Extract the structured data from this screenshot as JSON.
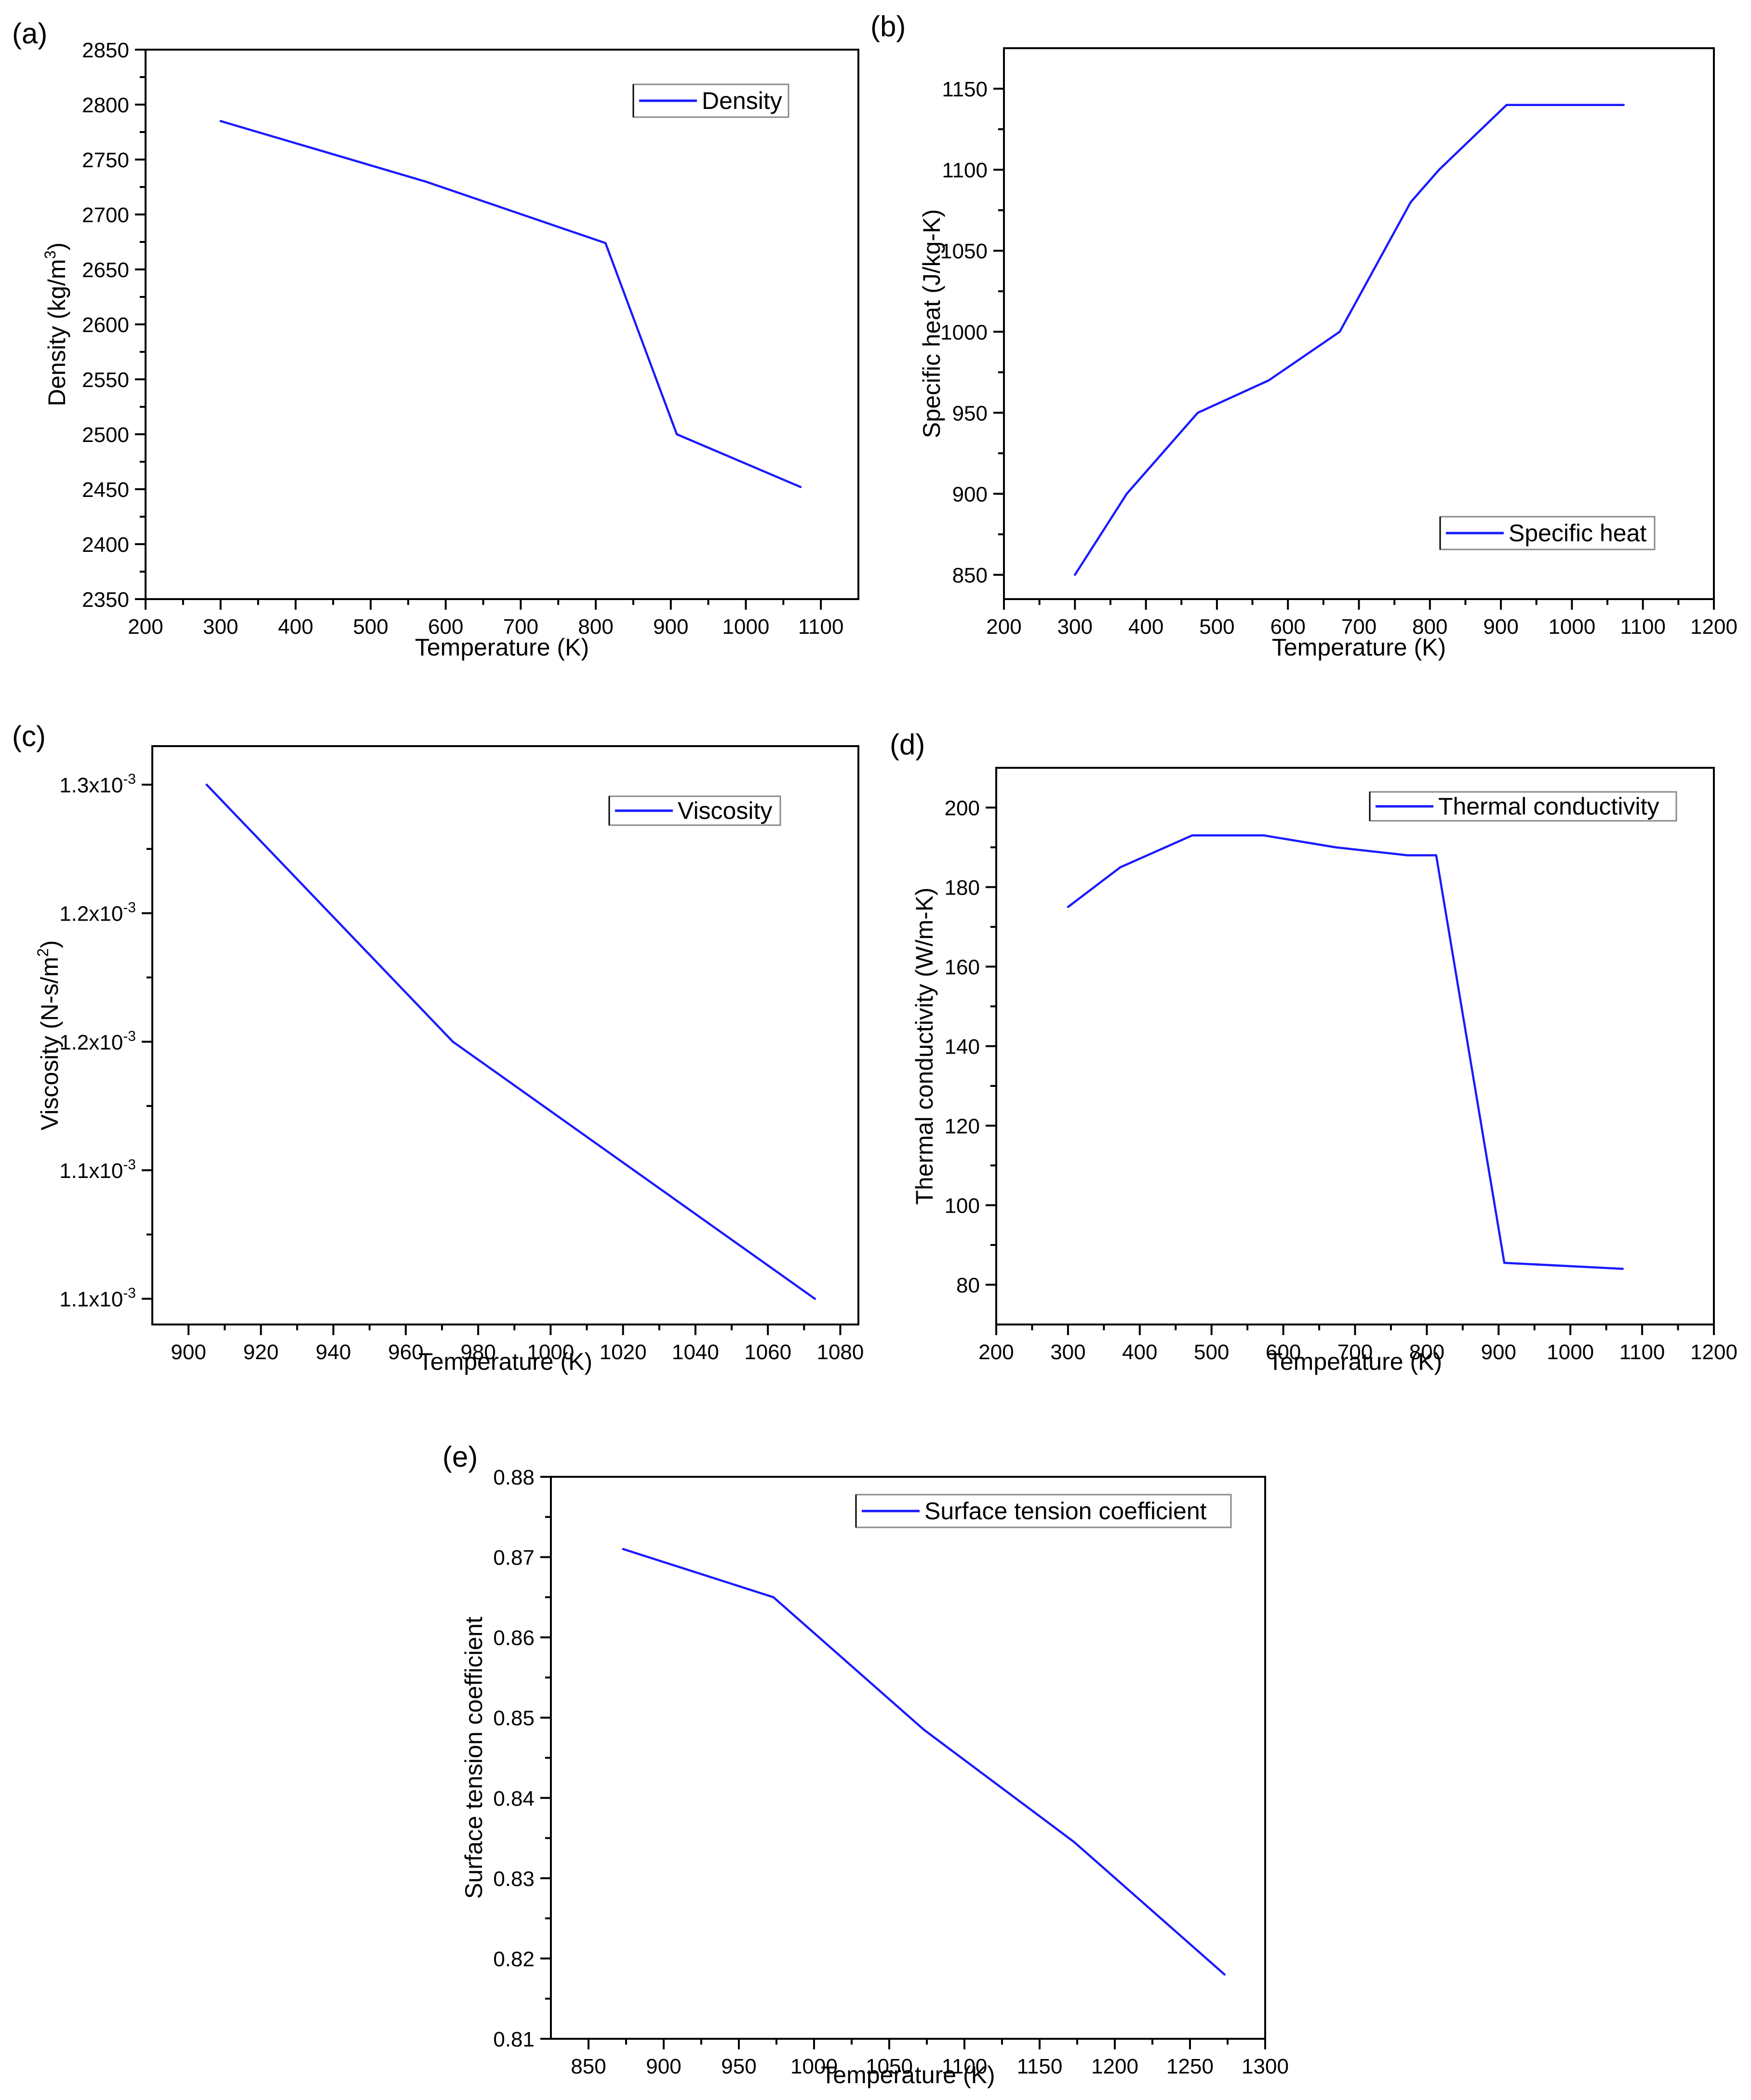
{
  "colors": {
    "series": "#1a1aff",
    "axis": "#000000",
    "background": "#ffffff"
  },
  "chart_data": [
    {
      "type": "line",
      "panel_label": "(a)",
      "title": "",
      "xlabel": "Temperature (K)",
      "ylabel": "Density (kg/m3)",
      "ylabel_main": "Density (kg/m",
      "ylabel_sup": "3",
      "ylabel_end": ")",
      "xlim": [
        200,
        1150
      ],
      "ylim": [
        2350,
        2850
      ],
      "xticks": [
        "200",
        "300",
        "400",
        "500",
        "600",
        "700",
        "800",
        "900",
        "1000",
        "1100"
      ],
      "yticks": [
        "2350",
        "2400",
        "2450",
        "2500",
        "2550",
        "2600",
        "2650",
        "2700",
        "2750",
        "2800",
        "2850"
      ],
      "legend_position": "top-right",
      "series": [
        {
          "name": "Density",
          "x": [
            300,
            573,
            813,
            908,
            1073
          ],
          "y": [
            2785,
            2730,
            2674,
            2500,
            2452
          ]
        }
      ]
    },
    {
      "type": "line",
      "panel_label": "(b)",
      "title": "",
      "xlabel": "Temperature (K)",
      "ylabel": "Specific heat (J/kg-K)",
      "xlim": [
        200,
        1200
      ],
      "ylim": [
        835,
        1175
      ],
      "xticks": [
        "200",
        "300",
        "400",
        "500",
        "600",
        "700",
        "800",
        "900",
        "1000",
        "1100",
        "1200"
      ],
      "yticks": [
        "850",
        "900",
        "950",
        "1000",
        "1050",
        "1100",
        "1150"
      ],
      "legend_position": "bottom-right",
      "series": [
        {
          "name": "Specific heat",
          "x": [
            300,
            373,
            473,
            573,
            673,
            773,
            813,
            908,
            1073
          ],
          "y": [
            850,
            900,
            950,
            970,
            1000,
            1080,
            1100,
            1140,
            1140
          ]
        }
      ]
    },
    {
      "type": "line",
      "panel_label": "(c)",
      "title": "",
      "xlabel": "Temperature (K)",
      "ylabel": "Viscosity (N-s/m2)",
      "ylabel_main": "Viscosity (N-s/m",
      "ylabel_sup": "2",
      "ylabel_end": ")",
      "xlim": [
        890,
        1085
      ],
      "ylim": [
        0.00109,
        0.001315
      ],
      "xticks": [
        "900",
        "920",
        "940",
        "960",
        "980",
        "1000",
        "1020",
        "1040",
        "1060",
        "1080"
      ],
      "yticks": [
        "1.1x10-3",
        "1.1x10-3",
        "1.2x10-3",
        "1.2x10-3",
        "1.3x10-3"
      ],
      "ytick_mantissas": [
        "1.1x10",
        "1.1x10",
        "1.2x10",
        "1.2x10",
        "1.3x10"
      ],
      "ytick_exponent": "-3",
      "ytick_values": [
        0.0011,
        0.00115,
        0.0012,
        0.00125,
        0.0013
      ],
      "legend_position": "top-right",
      "series": [
        {
          "name": "Viscosity",
          "x": [
            905,
            973,
            1073
          ],
          "y": [
            0.0013,
            0.0012,
            0.0011
          ]
        }
      ]
    },
    {
      "type": "line",
      "panel_label": "(d)",
      "title": "",
      "xlabel": "Temperature (K)",
      "ylabel": "Thermal conductivity (W/m-K)",
      "xlim": [
        200,
        1200
      ],
      "ylim": [
        70,
        210
      ],
      "xticks": [
        "200",
        "300",
        "400",
        "500",
        "600",
        "700",
        "800",
        "900",
        "1000",
        "1100",
        "1200"
      ],
      "yticks": [
        "80",
        "100",
        "120",
        "140",
        "160",
        "180",
        "200"
      ],
      "legend_position": "top-right",
      "series": [
        {
          "name": "Thermal conductivity",
          "x": [
            300,
            373,
            473,
            573,
            673,
            773,
            813,
            908,
            1073
          ],
          "y": [
            175,
            185,
            193,
            193,
            190,
            188,
            188,
            85.5,
            84
          ]
        }
      ]
    },
    {
      "type": "line",
      "panel_label": "(e)",
      "title": "",
      "xlabel": "Temperature (K)",
      "ylabel": "Surface tension coefficient",
      "xlim": [
        825,
        1300
      ],
      "ylim": [
        0.81,
        0.88
      ],
      "xticks": [
        "850",
        "900",
        "950",
        "1000",
        "1050",
        "1100",
        "1150",
        "1200",
        "1250",
        "1300"
      ],
      "yticks": [
        "0.81",
        "0.82",
        "0.83",
        "0.84",
        "0.85",
        "0.86",
        "0.87",
        "0.88"
      ],
      "legend_position": "top-right",
      "series": [
        {
          "name": "Surface tension coefficient",
          "x": [
            873,
            973,
            1073,
            1173,
            1273
          ],
          "y": [
            0.871,
            0.865,
            0.8485,
            0.8345,
            0.818
          ]
        }
      ]
    }
  ]
}
